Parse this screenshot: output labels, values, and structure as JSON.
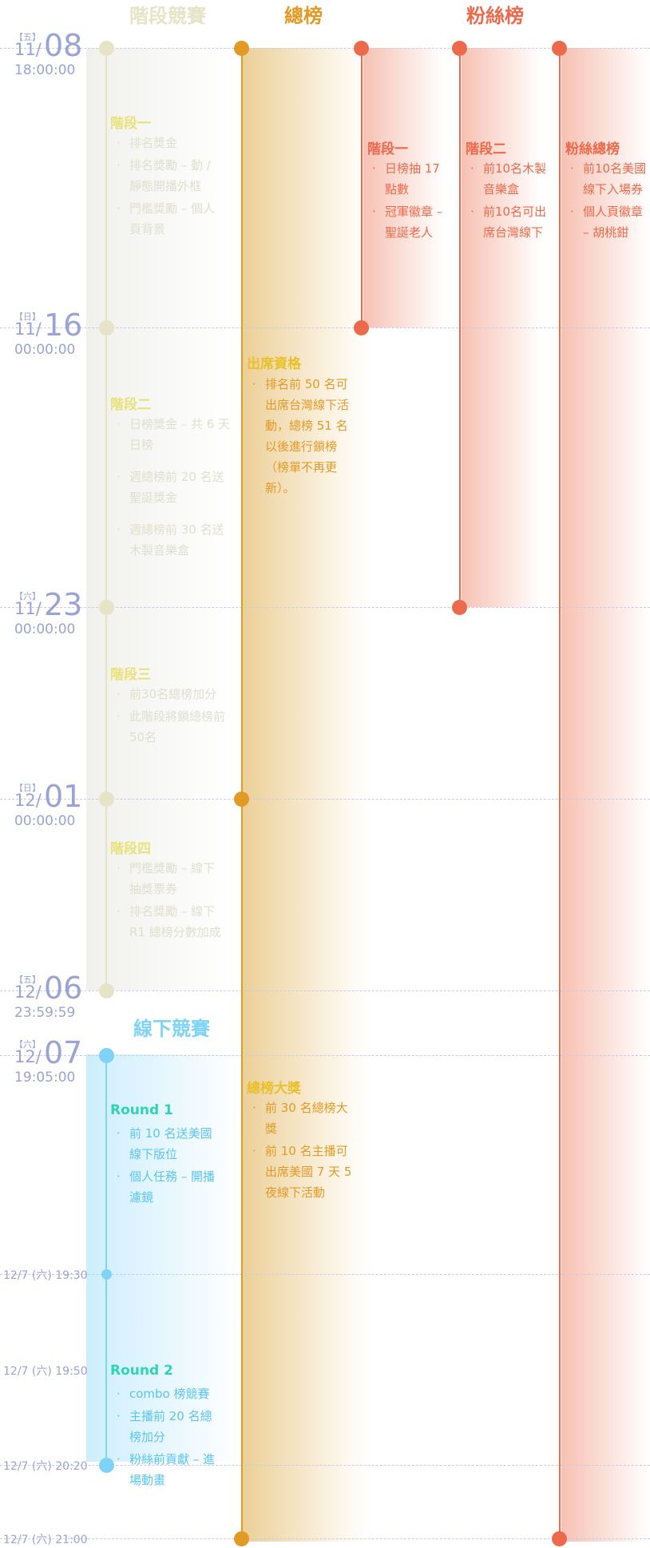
{
  "headers": {
    "stage": "階段競賽",
    "total": "總榜",
    "fan": "粉絲榜",
    "offline": "線下競賽"
  },
  "dates": [
    {
      "day": "【五】",
      "md": "11/",
      "big": "08",
      "time": "18:00:00"
    },
    {
      "day": "【日】",
      "md": "11/",
      "big": "16",
      "time": "00:00:00"
    },
    {
      "day": "【六】",
      "md": "11/",
      "big": "23",
      "time": "00:00:00"
    },
    {
      "day": "【日】",
      "md": "12/",
      "big": "01",
      "time": "00:00:00"
    },
    {
      "day": "【五】",
      "md": "12/",
      "big": "06",
      "time": "23:59:59"
    },
    {
      "day": "【六】",
      "md": "12/",
      "big": "07",
      "time": "19:05:00"
    }
  ],
  "times": [
    "12/7 (六) 19:30",
    "12/7 (六) 19:50",
    "12/7 (六) 20:20",
    "12/7 (六) 21:00"
  ],
  "stages": [
    {
      "title": "階段一",
      "items": [
        "排名獎金",
        "排名獎勵 – 動 / 靜態開播外框",
        "門檻獎勵 – 個人頁背景"
      ]
    },
    {
      "title": "階段二",
      "items": [
        "日榜獎金 – 共 6 天日榜",
        "週總榜前 20 名送聖誕獎金",
        "週總榜前 30 名送木製音樂盒"
      ]
    },
    {
      "title": "階段三",
      "items": [
        "前30名總榜加分",
        "此階段將鎖總榜前50名"
      ]
    },
    {
      "title": "階段四",
      "items": [
        "門檻獎勵 – 線下抽獎票券",
        "排名獎勵 – 線下 R1 總榜分數加成"
      ]
    }
  ],
  "total": [
    {
      "title": "出席資格",
      "items": [
        "排名前 50 名可出席台灣線下活動，總榜 51 名以後進行鎖榜（榜單不再更新）。"
      ]
    },
    {
      "title": "總榜大獎",
      "items": [
        "前 30 名總榜大獎",
        "前 10 名主播可出席美國 7 天 5 夜線下活動"
      ]
    }
  ],
  "fan": [
    {
      "title": "階段一",
      "items": [
        "日榜抽 17 點數",
        "冠軍徽章 – 聖誕老人"
      ]
    },
    {
      "title": "階段二",
      "items": [
        "前10名木製音樂盒",
        "前10名可出席台灣線下"
      ]
    },
    {
      "title": "粉絲總榜",
      "items": [
        "前10名美國線下入場券",
        "個人頁徽章 – 胡桃鉗"
      ]
    }
  ],
  "rounds": [
    {
      "title": "Round 1",
      "items": [
        "前 10 名送美國線下版位",
        "個人任務 – 開播濾鏡"
      ]
    },
    {
      "title": "Round 2",
      "items": [
        "combo 榜競賽",
        "主播前 20 名總榜加分",
        "粉絲前貢獻 – 進場動畫"
      ]
    }
  ],
  "colors": {
    "date": "#9aa3d6",
    "stage": "#e6e3c6",
    "stage_text": "#e9e27a",
    "total": "#e39a25",
    "fan": "#ec6a4b",
    "offline": "#7fd3f7",
    "round_title": "#2fd3b5"
  }
}
